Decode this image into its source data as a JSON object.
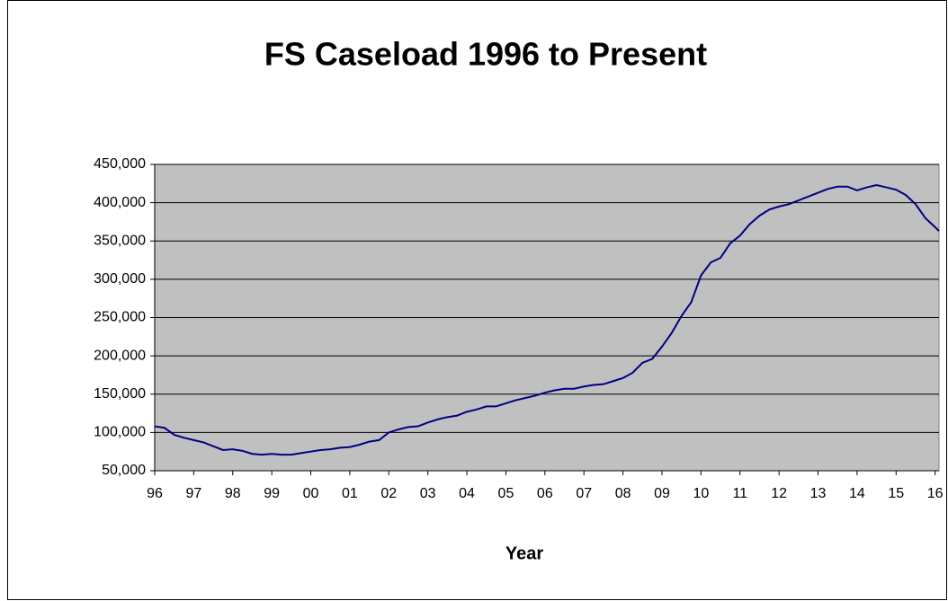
{
  "chart_data": {
    "type": "line",
    "title": "FS Caseload 1996 to Present",
    "x_label": "Year",
    "x": [
      1996.0,
      1996.25,
      1996.5,
      1996.75,
      1997.0,
      1997.25,
      1997.5,
      1997.75,
      1998.0,
      1998.25,
      1998.5,
      1998.75,
      1999.0,
      1999.25,
      1999.5,
      1999.75,
      2000.0,
      2000.25,
      2000.5,
      2000.75,
      2001.0,
      2001.25,
      2001.5,
      2001.75,
      2002.0,
      2002.25,
      2002.5,
      2002.75,
      2003.0,
      2003.25,
      2003.5,
      2003.75,
      2004.0,
      2004.25,
      2004.5,
      2004.75,
      2005.0,
      2005.25,
      2005.5,
      2005.75,
      2006.0,
      2006.25,
      2006.5,
      2006.75,
      2007.0,
      2007.25,
      2007.5,
      2007.75,
      2008.0,
      2008.25,
      2008.5,
      2008.75,
      2009.0,
      2009.25,
      2009.5,
      2009.75,
      2010.0,
      2010.25,
      2010.5,
      2010.75,
      2011.0,
      2011.25,
      2011.5,
      2011.75,
      2012.0,
      2012.25,
      2012.5,
      2012.75,
      2013.0,
      2013.25,
      2013.5,
      2013.75,
      2014.0,
      2014.25,
      2014.5,
      2014.75,
      2015.0,
      2015.25,
      2015.5,
      2015.75,
      2016.0,
      2016.1
    ],
    "series": [
      {
        "name": "FS Caseload",
        "color": "#000080",
        "values": [
          108000,
          106000,
          97000,
          93000,
          90000,
          87000,
          82000,
          77000,
          78000,
          76000,
          72000,
          71000,
          72000,
          71000,
          71000,
          73000,
          75000,
          77000,
          78000,
          80000,
          81000,
          84000,
          88000,
          90000,
          100000,
          104000,
          107000,
          108000,
          113000,
          117000,
          120000,
          122000,
          127000,
          130000,
          134000,
          134000,
          138000,
          142000,
          145000,
          148000,
          152000,
          155000,
          157000,
          157000,
          160000,
          162000,
          163000,
          167000,
          171000,
          178000,
          191000,
          196000,
          212000,
          230000,
          252000,
          270000,
          305000,
          322000,
          328000,
          347000,
          357000,
          372000,
          383000,
          391000,
          395000,
          398000,
          403000,
          408000,
          413000,
          418000,
          421000,
          421000,
          416000,
          420000,
          423000,
          420000,
          417000,
          410000,
          398000,
          380000,
          368000,
          363000
        ]
      }
    ],
    "xlim": [
      1996,
      2016.1
    ],
    "xticks": [
      {
        "value": 1996,
        "label": "96"
      },
      {
        "value": 1997,
        "label": "97"
      },
      {
        "value": 1998,
        "label": "98"
      },
      {
        "value": 1999,
        "label": "99"
      },
      {
        "value": 2000,
        "label": "00"
      },
      {
        "value": 2001,
        "label": "01"
      },
      {
        "value": 2002,
        "label": "02"
      },
      {
        "value": 2003,
        "label": "03"
      },
      {
        "value": 2004,
        "label": "04"
      },
      {
        "value": 2005,
        "label": "05"
      },
      {
        "value": 2006,
        "label": "06"
      },
      {
        "value": 2007,
        "label": "07"
      },
      {
        "value": 2008,
        "label": "08"
      },
      {
        "value": 2009,
        "label": "09"
      },
      {
        "value": 2010,
        "label": "10"
      },
      {
        "value": 2011,
        "label": "11"
      },
      {
        "value": 2012,
        "label": "12"
      },
      {
        "value": 2013,
        "label": "13"
      },
      {
        "value": 2014,
        "label": "14"
      },
      {
        "value": 2015,
        "label": "15"
      },
      {
        "value": 2016,
        "label": "16"
      }
    ],
    "ylim": [
      50000,
      450000
    ],
    "yticks": [
      {
        "value": 50000,
        "label": "50,000"
      },
      {
        "value": 100000,
        "label": "100,000"
      },
      {
        "value": 150000,
        "label": "150,000"
      },
      {
        "value": 200000,
        "label": "200,000"
      },
      {
        "value": 250000,
        "label": "250,000"
      },
      {
        "value": 300000,
        "label": "300,000"
      },
      {
        "value": 350000,
        "label": "350,000"
      },
      {
        "value": 400000,
        "label": "400,000"
      },
      {
        "value": 450000,
        "label": "450,000"
      }
    ],
    "grid": true,
    "plot_background": "#c0c0c0"
  }
}
